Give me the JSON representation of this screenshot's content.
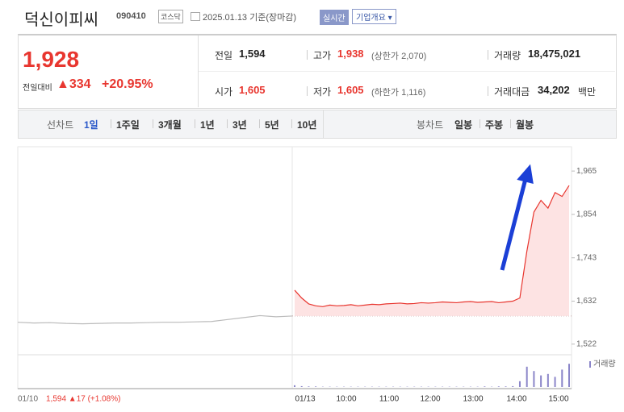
{
  "header": {
    "name": "덕신이피씨",
    "code": "090410",
    "market": "코스닥",
    "date": "2025.01.13 기준(장마감)",
    "realtime": "실시간",
    "company": "기업개요 ▾"
  },
  "quote": {
    "price": "1,928",
    "change_label": "전일대비",
    "change": "▲334",
    "rate": "+20.95%",
    "rows": [
      [
        {
          "label": "전일",
          "value": "1,594"
        },
        {
          "label": "고가",
          "value": "1,938",
          "note": "(상한가 2,070)"
        },
        {
          "label": "거래량",
          "value": "18,475,021"
        }
      ],
      [
        {
          "label": "시가",
          "value": "1,605"
        },
        {
          "label": "저가",
          "value": "1,605",
          "note": "(하한가 1,116)"
        },
        {
          "label": "거래대금",
          "value": "34,202",
          "unit": "백만"
        }
      ]
    ]
  },
  "tabs": {
    "line_label": "선차트",
    "periods": [
      "1일",
      "1주일",
      "3개월",
      "1년",
      "3년",
      "5년",
      "10년"
    ],
    "candle_label": "봉차트",
    "candles": [
      "일봉",
      "주봉",
      "월봉"
    ]
  },
  "chart_data": {
    "type": "line",
    "series": [
      {
        "color": "#bbbbbb",
        "values": [
          1578,
          1576,
          1577,
          1575,
          1574,
          1575,
          1576,
          1576,
          1577,
          1578,
          1578,
          1579,
          1580,
          1585,
          1590,
          1595,
          1592,
          1594
        ]
      },
      {
        "color": "#e8362f",
        "values": [
          1660,
          1640,
          1625,
          1620,
          1618,
          1622,
          1620,
          1621,
          1623,
          1620,
          1622,
          1624,
          1623,
          1625,
          1626,
          1627,
          1625,
          1626,
          1628,
          1627,
          1628,
          1630,
          1629,
          1628,
          1630,
          1631,
          1629,
          1630,
          1631,
          1628,
          1630,
          1632,
          1640,
          1760,
          1860,
          1890,
          1870,
          1910,
          1900,
          1928
        ]
      }
    ],
    "base_line": 1594,
    "ylim": [
      1501,
      2021
    ],
    "yticks": [
      {
        "value": 1522,
        "label": "1,522"
      },
      {
        "value": 1632,
        "label": "1,632"
      },
      {
        "value": 1743,
        "label": "1,743"
      },
      {
        "value": 1854,
        "label": "1,854"
      },
      {
        "value": 1965,
        "label": "1,965"
      }
    ],
    "prev_date": "01/10",
    "prev_info": "1,594 ▲17 (+1.08%)",
    "xticks": [
      "01/13",
      "10:00",
      "11:00",
      "12:00",
      "13:00",
      "14:00",
      "15:00"
    ],
    "volume_label": "거래량",
    "volume": {
      "color": "#8b86c9",
      "vlim": [
        0,
        100
      ],
      "values": [
        6,
        3,
        2,
        2,
        1,
        1,
        1,
        1,
        1,
        1,
        1,
        1,
        1,
        1,
        1,
        1,
        1,
        1,
        1,
        1,
        1,
        1,
        1,
        1,
        1,
        1,
        1,
        2,
        1,
        2,
        2,
        3,
        20,
        70,
        55,
        40,
        45,
        35,
        60,
        80
      ]
    }
  }
}
